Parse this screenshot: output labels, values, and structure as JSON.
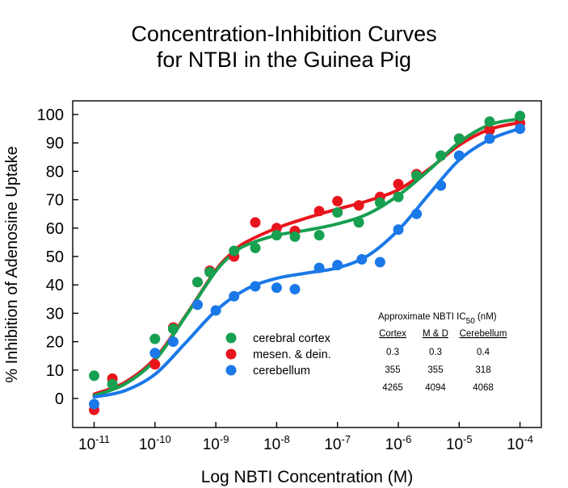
{
  "chart_data": {
    "type": "scatter",
    "title_line1": "Concentration-Inhibition Curves",
    "title_line2": "for NTBI in the Guinea Pig",
    "xlabel": "Log NBTI Concentration (M)",
    "ylabel": "% Inhibition of Adenosine Uptake",
    "xscale": "log",
    "xlim": [
      -11.3,
      -3.65
    ],
    "ylim": [
      -9,
      105
    ],
    "x_ticks": [
      {
        "value": -11,
        "base": "10",
        "exp": "-11"
      },
      {
        "value": -10,
        "base": "10",
        "exp": "-10"
      },
      {
        "value": -9,
        "base": "10",
        "exp": "-9"
      },
      {
        "value": -8,
        "base": "10",
        "exp": "-8"
      },
      {
        "value": -7,
        "base": "10",
        "exp": "-7"
      },
      {
        "value": -6,
        "base": "10",
        "exp": "-6"
      },
      {
        "value": -5,
        "base": "10",
        "exp": "-5"
      },
      {
        "value": -4,
        "base": "10",
        "exp": "-4"
      }
    ],
    "y_ticks": [
      0,
      10,
      20,
      30,
      40,
      50,
      60,
      70,
      80,
      90,
      100
    ],
    "grid": false,
    "legend_position": "lower-center",
    "series": [
      {
        "name": "mesen. & dein.",
        "color": "#e8141c",
        "points": [
          [
            -11,
            -4
          ],
          [
            -10.7,
            7
          ],
          [
            -10,
            12
          ],
          [
            -9.7,
            25
          ],
          [
            -9.3,
            41
          ],
          [
            -9.1,
            45
          ],
          [
            -8.7,
            50
          ],
          [
            -8.35,
            62
          ],
          [
            -8,
            60
          ],
          [
            -7.7,
            59
          ],
          [
            -7.3,
            66
          ],
          [
            -7,
            69.5
          ],
          [
            -6.65,
            68
          ],
          [
            -6.3,
            71
          ],
          [
            -6,
            75.5
          ],
          [
            -5.7,
            79
          ],
          [
            -5.3,
            85.5
          ],
          [
            -5,
            91.5
          ],
          [
            -4.5,
            94.5
          ],
          [
            -4,
            97
          ]
        ],
        "curve": [
          [
            -11,
            1.5
          ],
          [
            -10.5,
            5.6
          ],
          [
            -10,
            14.1
          ],
          [
            -9.5,
            29
          ],
          [
            -9,
            45.2
          ],
          [
            -8.7,
            51.9
          ],
          [
            -8.5,
            55.1
          ],
          [
            -8,
            60
          ],
          [
            -7.5,
            63.6
          ],
          [
            -7,
            66.7
          ],
          [
            -6.5,
            69.6
          ],
          [
            -6,
            73.5
          ],
          [
            -5.5,
            80.7
          ],
          [
            -5,
            89.2
          ],
          [
            -4.5,
            94.8
          ],
          [
            -4,
            97.2
          ]
        ]
      },
      {
        "name": "cerebral cortex",
        "color": "#16a050",
        "points": [
          [
            -11,
            8
          ],
          [
            -10.7,
            5
          ],
          [
            -10,
            21
          ],
          [
            -9.7,
            24.5
          ],
          [
            -9.3,
            41
          ],
          [
            -9.1,
            44.5
          ],
          [
            -8.7,
            52
          ],
          [
            -8.35,
            53
          ],
          [
            -8,
            57.5
          ],
          [
            -7.7,
            57
          ],
          [
            -7.3,
            57.5
          ],
          [
            -7,
            65.5
          ],
          [
            -6.65,
            62
          ],
          [
            -6.3,
            69
          ],
          [
            -6,
            71
          ],
          [
            -5.7,
            78.5
          ],
          [
            -5.3,
            85.5
          ],
          [
            -5,
            91.5
          ],
          [
            -4.5,
            97.5
          ],
          [
            -4,
            99.5
          ]
        ],
        "curve": [
          [
            -11,
            1
          ],
          [
            -10.5,
            5
          ],
          [
            -10,
            13.5
          ],
          [
            -9.5,
            28.8
          ],
          [
            -9,
            44.8
          ],
          [
            -8.7,
            51.2
          ],
          [
            -8.5,
            54
          ],
          [
            -8,
            57.5
          ],
          [
            -7.5,
            59.3
          ],
          [
            -7,
            61.5
          ],
          [
            -6.5,
            65
          ],
          [
            -6,
            71.5
          ],
          [
            -5.5,
            80.3
          ],
          [
            -5,
            90.2
          ],
          [
            -4.5,
            96.4
          ],
          [
            -4,
            98.5
          ]
        ]
      },
      {
        "name": "cerebellum",
        "color": "#1a78e8",
        "points": [
          [
            -11,
            -2
          ],
          [
            -10,
            16
          ],
          [
            -9.7,
            20
          ],
          [
            -9.3,
            33
          ],
          [
            -9,
            31
          ],
          [
            -8.7,
            36
          ],
          [
            -8.35,
            39.5
          ],
          [
            -8,
            39
          ],
          [
            -7.7,
            38.5
          ],
          [
            -7.3,
            46
          ],
          [
            -7,
            47
          ],
          [
            -6.6,
            49
          ],
          [
            -6.3,
            48
          ],
          [
            -6,
            59.5
          ],
          [
            -5.7,
            65
          ],
          [
            -5.3,
            75
          ],
          [
            -5,
            85.5
          ],
          [
            -4.5,
            91.5
          ],
          [
            -4,
            95
          ]
        ],
        "curve": [
          [
            -11,
            0.5
          ],
          [
            -10.5,
            2.7
          ],
          [
            -10,
            8.5
          ],
          [
            -9.5,
            19.5
          ],
          [
            -9,
            30.9
          ],
          [
            -8.5,
            38.5
          ],
          [
            -8,
            42.3
          ],
          [
            -7.5,
            44.2
          ],
          [
            -7,
            46
          ],
          [
            -6.5,
            50.3
          ],
          [
            -6,
            59.3
          ],
          [
            -5.5,
            71.8
          ],
          [
            -5,
            84
          ],
          [
            -4.5,
            91.2
          ],
          [
            -4,
            95.1
          ]
        ]
      }
    ],
    "legend": [
      {
        "label": "cerebral cortex",
        "color": "#16a050"
      },
      {
        "label": "mesen. & dein.",
        "color": "#e8141c"
      },
      {
        "label": "cerebellum",
        "color": "#1a78e8"
      }
    ],
    "ic50_table": {
      "title_main": "Approximate  NBTI IC",
      "title_sub": "50",
      "title_unit": " (nM)",
      "headers": [
        "Cortex",
        "M & D",
        "Cerebellum"
      ],
      "rows": [
        [
          "0.3",
          "0.3",
          "0.4"
        ],
        [
          "355",
          "355",
          "318"
        ],
        [
          "4265",
          "4094",
          "4068"
        ]
      ]
    }
  }
}
